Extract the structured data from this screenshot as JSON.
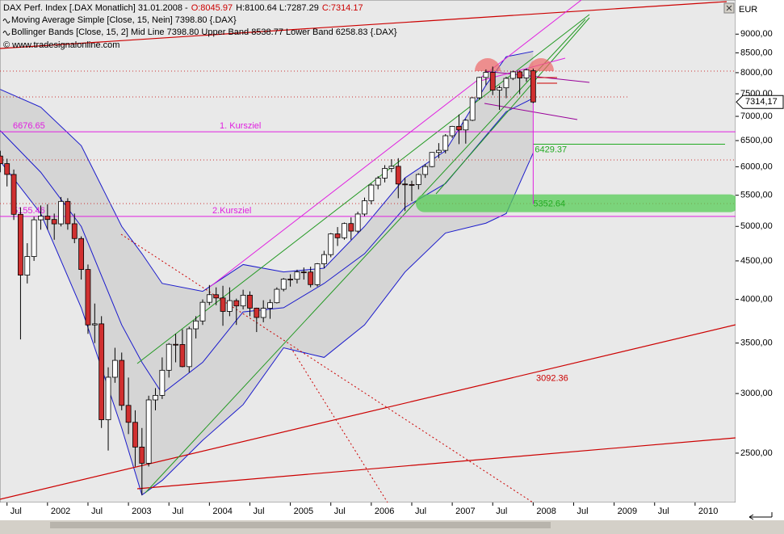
{
  "chart_data": {
    "type": "candlestick",
    "header": [
      {
        "text": "DAX Perf. Index [.DAX  Monatlich] 31.01.2008 -",
        "color": "#000000"
      },
      {
        "text": "O:8045.97",
        "color": "#cc0000"
      },
      {
        "text": "H:8100.64 L:7287.29",
        "color": "#000000"
      },
      {
        "text": "C:7314.17",
        "color": "#cc0000"
      }
    ],
    "legend_lines": [
      "Moving Average Simple [Close, 15, Nein] 7398.80 {.DAX}",
      "Bollinger Bands [Close, 15, 2] Mid Line 7398.80 Upper Band 8538.77 Lower Band 6258.83 {.DAX}",
      "© www.tradesignalonline.com"
    ],
    "currency": "EUR",
    "log_scale": true,
    "ylim": [
      2150,
      9990
    ],
    "yticks": [
      {
        "value": 2500,
        "label": "2500,00"
      },
      {
        "value": 3000,
        "label": "3000,00"
      },
      {
        "value": 3500,
        "label": "3500,00"
      },
      {
        "value": 4000,
        "label": "4000,00"
      },
      {
        "value": 4500,
        "label": "4500,00"
      },
      {
        "value": 5000,
        "label": "5000,00"
      },
      {
        "value": 5500,
        "label": "5500,00"
      },
      {
        "value": 6000,
        "label": "6000,00"
      },
      {
        "value": 6500,
        "label": "6500,00"
      },
      {
        "value": 7000,
        "label": "7000,00"
      },
      {
        "value": 7500,
        "label": "7500,00"
      },
      {
        "value": 8000,
        "label": "8000,00"
      },
      {
        "value": 8500,
        "label": "8500,00"
      },
      {
        "value": 9000,
        "label": "9000,00"
      }
    ],
    "xlim": [
      "2001-05",
      "2010-07"
    ],
    "xticks": [
      {
        "value": "2001-07",
        "label": "Jul"
      },
      {
        "value": "2002-01",
        "label": "2002"
      },
      {
        "value": "2002-07",
        "label": "Jul"
      },
      {
        "value": "2003-01",
        "label": "2003"
      },
      {
        "value": "2003-07",
        "label": "Jul"
      },
      {
        "value": "2004-01",
        "label": "2004"
      },
      {
        "value": "2004-07",
        "label": "Jul"
      },
      {
        "value": "2005-01",
        "label": "2005"
      },
      {
        "value": "2005-07",
        "label": "Jul"
      },
      {
        "value": "2006-01",
        "label": "2006"
      },
      {
        "value": "2006-07",
        "label": "Jul"
      },
      {
        "value": "2007-01",
        "label": "2007"
      },
      {
        "value": "2007-07",
        "label": "Jul"
      },
      {
        "value": "2008-01",
        "label": "2008"
      },
      {
        "value": "2008-07",
        "label": "Jul"
      },
      {
        "value": "2009-01",
        "label": "2009"
      },
      {
        "value": "2009-07",
        "label": "Jul"
      },
      {
        "value": "2010-01",
        "label": "2010"
      }
    ],
    "up_color": "#ffffff",
    "down_color": "#d03030",
    "x": [
      "2001-06",
      "2001-07",
      "2001-08",
      "2001-09",
      "2001-10",
      "2001-11",
      "2001-12",
      "2002-01",
      "2002-02",
      "2002-03",
      "2002-04",
      "2002-05",
      "2002-06",
      "2002-07",
      "2002-08",
      "2002-09",
      "2002-10",
      "2002-11",
      "2002-12",
      "2003-01",
      "2003-02",
      "2003-03",
      "2003-04",
      "2003-05",
      "2003-06",
      "2003-07",
      "2003-08",
      "2003-09",
      "2003-10",
      "2003-11",
      "2003-12",
      "2004-01",
      "2004-02",
      "2004-03",
      "2004-04",
      "2004-05",
      "2004-06",
      "2004-07",
      "2004-08",
      "2004-09",
      "2004-10",
      "2004-11",
      "2004-12",
      "2005-01",
      "2005-02",
      "2005-03",
      "2005-04",
      "2005-05",
      "2005-06",
      "2005-07",
      "2005-08",
      "2005-09",
      "2005-10",
      "2005-11",
      "2005-12",
      "2006-01",
      "2006-02",
      "2006-03",
      "2006-04",
      "2006-05",
      "2006-06",
      "2006-07",
      "2006-08",
      "2006-09",
      "2006-10",
      "2006-11",
      "2006-12",
      "2007-01",
      "2007-02",
      "2007-03",
      "2007-04",
      "2007-05",
      "2007-06",
      "2007-07",
      "2007-08",
      "2007-09",
      "2007-10",
      "2007-11",
      "2007-12",
      "2008-01"
    ],
    "open": [
      6200,
      6058,
      5861,
      5188,
      4308,
      4560,
      5102,
      5160,
      5107,
      5039,
      5397,
      5041,
      4818,
      4383,
      3700,
      3712,
      2769,
      3153,
      3320,
      2893,
      2747,
      2547,
      2424,
      2942,
      2983,
      3221,
      3487,
      3485,
      3257,
      3656,
      3745,
      3965,
      4058,
      4018,
      3856,
      3985,
      3921,
      4052,
      3895,
      3785,
      3893,
      3960,
      4126,
      4256,
      4254,
      4350,
      4349,
      4185,
      4460,
      4587,
      4887,
      4829,
      5044,
      4929,
      5193,
      5408,
      5674,
      5796,
      5970,
      6009,
      5692,
      5683,
      5682,
      5860,
      6004,
      6269,
      6309,
      6597,
      6789,
      6716,
      6917,
      7409,
      7884,
      8007,
      7584,
      7638,
      7862,
      8020,
      7871,
      8045.97
    ],
    "high": [
      6300,
      6150,
      5950,
      5300,
      4750,
      5150,
      5330,
      5350,
      5200,
      5470,
      5450,
      5200,
      4850,
      4450,
      3950,
      3800,
      3250,
      3450,
      3400,
      3150,
      2850,
      2700,
      2980,
      3050,
      3350,
      3500,
      3600,
      3650,
      3680,
      3800,
      4000,
      4180,
      4150,
      4170,
      4150,
      4010,
      4120,
      4100,
      3900,
      3990,
      4000,
      4150,
      4270,
      4320,
      4380,
      4410,
      4420,
      4470,
      4640,
      4900,
      4990,
      5060,
      5140,
      5230,
      5460,
      5700,
      5830,
      6030,
      6140,
      6160,
      5800,
      5750,
      5880,
      6050,
      6270,
      6450,
      6630,
      6800,
      7040,
      6940,
      7420,
      7900,
      8080,
      8150,
      7690,
      7900,
      8050,
      8050,
      8100,
      8100.64
    ],
    "low": [
      5900,
      5650,
      5100,
      3540,
      4200,
      4500,
      4950,
      4950,
      4800,
      5000,
      4950,
      4750,
      4250,
      3600,
      3500,
      2700,
      2520,
      3100,
      2850,
      2650,
      2400,
      2200,
      2400,
      2850,
      2950,
      3150,
      3300,
      3250,
      3200,
      3550,
      3700,
      3930,
      3930,
      3690,
      3800,
      3700,
      3880,
      3800,
      3620,
      3730,
      3770,
      3950,
      4100,
      4160,
      4200,
      4250,
      4150,
      4160,
      4400,
      4550,
      4710,
      4800,
      4800,
      4900,
      5160,
      5350,
      5600,
      5720,
      5900,
      5450,
      5240,
      5400,
      5600,
      5800,
      5990,
      6160,
      6250,
      6550,
      6430,
      6440,
      6900,
      7370,
      7700,
      7470,
      7140,
      7400,
      7820,
      7490,
      7780,
      7287.29
    ],
    "close": [
      6058,
      5861,
      5188,
      4308,
      4560,
      5102,
      5160,
      5107,
      5039,
      5397,
      5041,
      4818,
      4383,
      3700,
      3712,
      2769,
      3153,
      3320,
      2893,
      2747,
      2547,
      2424,
      2942,
      2983,
      3221,
      3487,
      3485,
      3257,
      3656,
      3745,
      3965,
      4058,
      4018,
      3856,
      3985,
      3921,
      4052,
      3895,
      3785,
      3893,
      3960,
      4126,
      4256,
      4254,
      4350,
      4349,
      4185,
      4460,
      4587,
      4887,
      4829,
      5044,
      4929,
      5193,
      5408,
      5674,
      5796,
      5970,
      6009,
      5692,
      5683,
      5682,
      5860,
      6004,
      6269,
      6309,
      6597,
      6789,
      6716,
      6917,
      7409,
      7884,
      8007,
      7584,
      7638,
      7862,
      8020,
      7871,
      8067,
      7314.17
    ],
    "price_marker": {
      "value": 7314.17,
      "label": "7314,17"
    },
    "band_fill": "#c8c8c8",
    "indicator_x": [
      "2001-06",
      "2001-12",
      "2002-06",
      "2002-12",
      "2003-03",
      "2003-06",
      "2003-12",
      "2004-06",
      "2004-12",
      "2005-06",
      "2005-12",
      "2006-06",
      "2006-12",
      "2007-06",
      "2007-09",
      "2008-01"
    ],
    "indicators": [
      {
        "role": "upper",
        "color": "#1a1acc",
        "values": [
          7600,
          7200,
          6400,
          5000,
          4600,
          4200,
          4100,
          4450,
          4350,
          4400,
          5000,
          5800,
          6300,
          7700,
          8400,
          8538.77
        ]
      },
      {
        "role": "mid",
        "color": "#1a1acc",
        "values": [
          6700,
          5900,
          5000,
          3700,
          3300,
          3000,
          3300,
          3850,
          3900,
          4200,
          4600,
          5300,
          5700,
          6600,
          7100,
          7398.8
        ]
      },
      {
        "role": "lower",
        "color": "#1a1acc",
        "values": [
          6100,
          5200,
          3900,
          2700,
          2200,
          2300,
          2600,
          2900,
          3450,
          3350,
          3700,
          4350,
          4900,
          5050,
          5200,
          6258.83
        ]
      }
    ],
    "levels": [
      {
        "value": 6676.65,
        "text": "1. Kursziel",
        "color": "#e020e0"
      },
      {
        "value": 5155.46,
        "text": "2.Kursziel",
        "color": "#e020e0"
      },
      {
        "value": 6429.37,
        "color": "#22aa22"
      },
      {
        "value": 5352.64,
        "color": "#22aa22"
      },
      {
        "value": 3092.36,
        "color": "#cc0000"
      }
    ]
  }
}
